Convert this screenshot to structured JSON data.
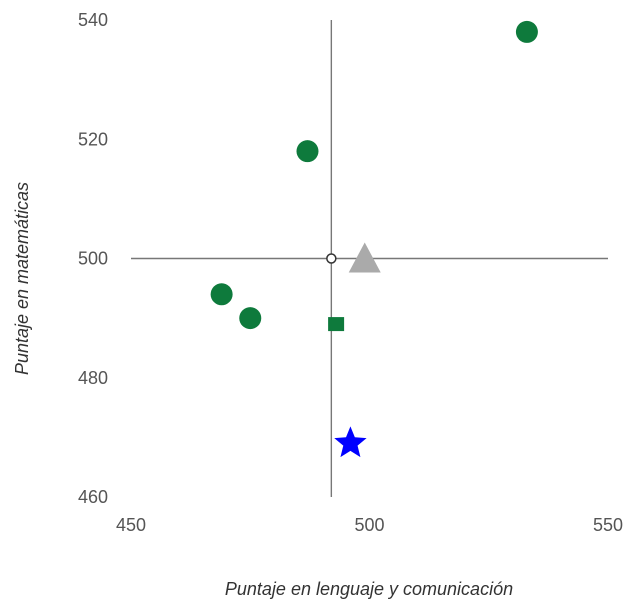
{
  "chart_data": {
    "type": "scatter",
    "xlabel": "Puntaje en lenguaje y comunicación",
    "ylabel": "Puntaje en matemáticas",
    "xlim": [
      450,
      550
    ],
    "ylim": [
      460,
      540
    ],
    "xticks": [
      "450",
      "500",
      "550"
    ],
    "yticks": [
      "460",
      "480",
      "500",
      "520",
      "540"
    ],
    "reference_lines": {
      "x": 492,
      "y": 500
    },
    "reference_marker": {
      "x": 492,
      "y": 500,
      "shape": "open-circle"
    },
    "points": [
      {
        "x": 533,
        "y": 538,
        "shape": "circle",
        "color": "#0e7a3c"
      },
      {
        "x": 487,
        "y": 518,
        "shape": "circle",
        "color": "#0e7a3c"
      },
      {
        "x": 469,
        "y": 494,
        "shape": "circle",
        "color": "#0e7a3c"
      },
      {
        "x": 475,
        "y": 490,
        "shape": "circle",
        "color": "#0e7a3c"
      },
      {
        "x": 493,
        "y": 489,
        "shape": "square",
        "color": "#0e7a3c"
      },
      {
        "x": 499,
        "y": 500,
        "shape": "triangle",
        "color": "#aaaaaa"
      },
      {
        "x": 496,
        "y": 469,
        "shape": "star",
        "color": "#0000ff"
      }
    ],
    "grid": false,
    "legend": "none"
  }
}
